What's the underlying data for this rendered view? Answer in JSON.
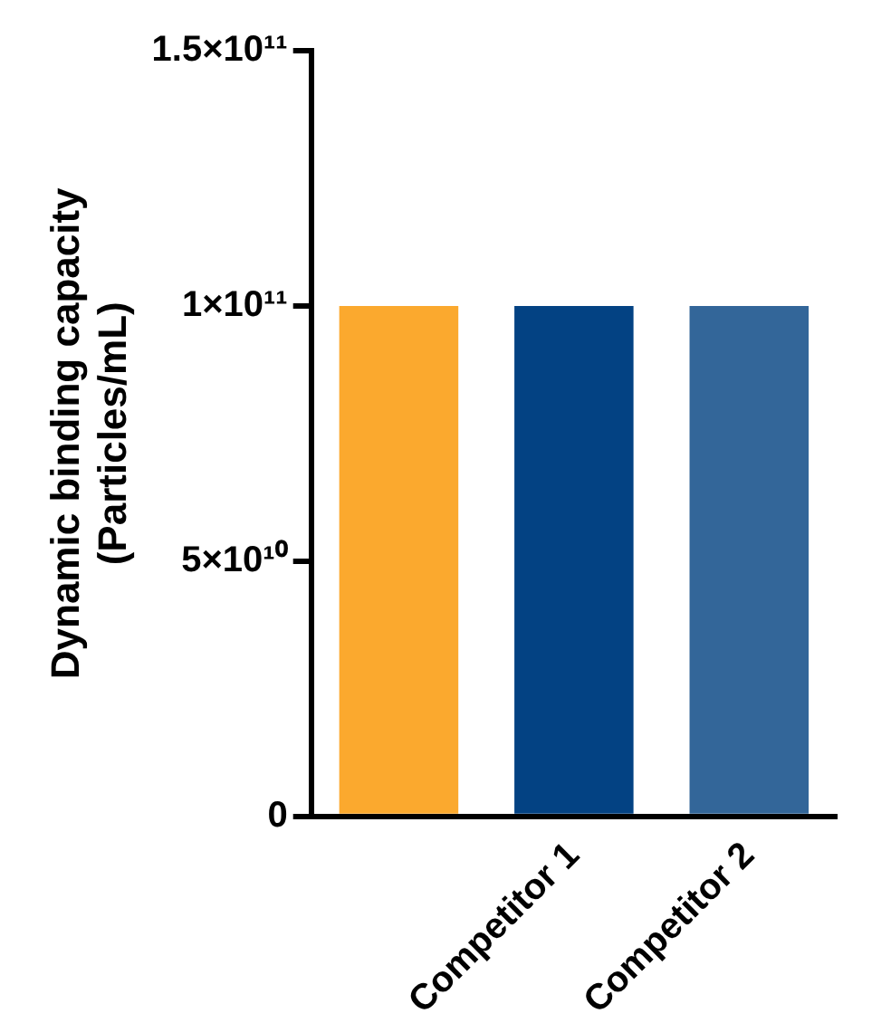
{
  "chart_data": {
    "type": "bar",
    "ylabel": "Dynamic binding capacity\n(Particles/mL)",
    "categories": [
      null,
      "Competitor 1",
      "Competitor 2"
    ],
    "values": [
      100000000000.0,
      100000000000.0,
      100000000000.0
    ],
    "colors": [
      "#fba92e",
      "#034283",
      "#336699"
    ],
    "ylim": [
      0,
      150000000000.0
    ],
    "yticks": [
      0,
      {
        "value": 50000000000.0,
        "label": "5×10¹⁰"
      },
      {
        "value": 100000000000.0,
        "label": "1×10¹¹"
      },
      {
        "value": 150000000000.0,
        "label": "1.5×10¹¹"
      }
    ],
    "grid": false,
    "legend": false
  }
}
